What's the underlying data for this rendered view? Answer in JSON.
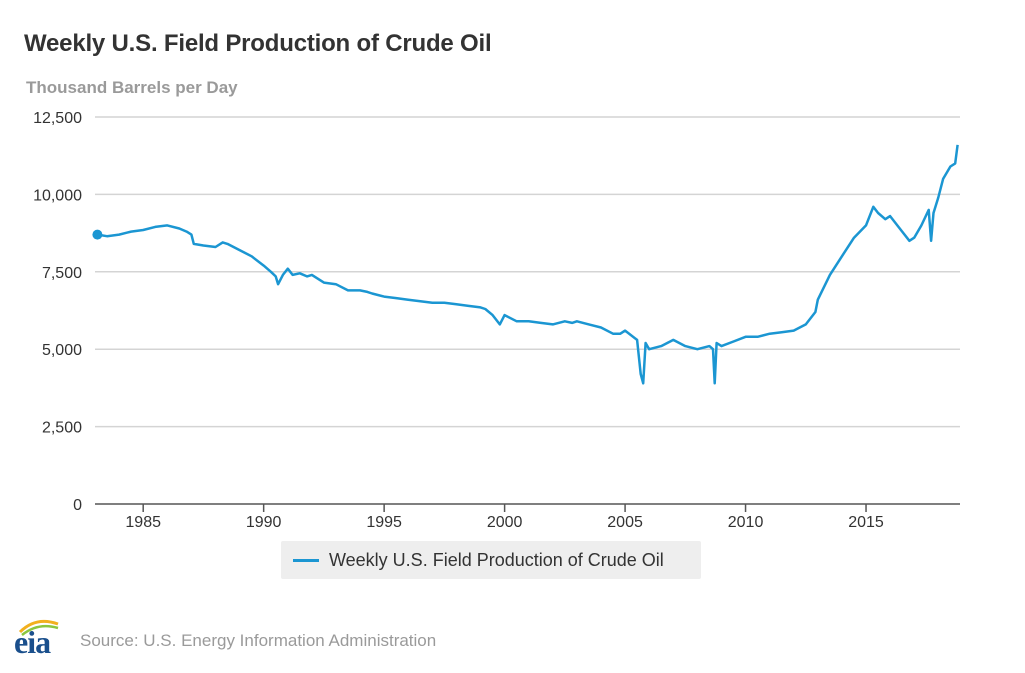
{
  "chart_data": {
    "type": "line",
    "title": "Weekly U.S. Field Production of Crude Oil",
    "ylabel": "Thousand Barrels per Day",
    "xlabel": "",
    "xlim": [
      1983.0,
      2018.9
    ],
    "ylim": [
      0,
      12500
    ],
    "x_ticks": [
      1985,
      1990,
      1995,
      2000,
      2005,
      2010,
      2015
    ],
    "y_ticks": [
      0,
      2500,
      5000,
      7500,
      10000,
      12500
    ],
    "y_tick_labels": [
      "0",
      "2,500",
      "5,000",
      "7,500",
      "10,000",
      "12,500"
    ],
    "grid": true,
    "legend_position": "bottom-center",
    "series": [
      {
        "name": "Weekly U.S. Field Production of Crude Oil",
        "color": "#1b96d2",
        "start_marker": true,
        "x": [
          1983.1,
          1983.5,
          1984.0,
          1984.5,
          1985.0,
          1985.5,
          1986.0,
          1986.5,
          1986.8,
          1987.0,
          1987.1,
          1987.5,
          1988.0,
          1988.3,
          1988.5,
          1989.0,
          1989.5,
          1990.0,
          1990.3,
          1990.5,
          1990.6,
          1990.8,
          1991.0,
          1991.2,
          1991.5,
          1991.8,
          1992.0,
          1992.5,
          1993.0,
          1993.5,
          1994.0,
          1994.3,
          1994.5,
          1995.0,
          1995.5,
          1996.0,
          1996.5,
          1997.0,
          1997.5,
          1998.0,
          1998.5,
          1999.0,
          1999.2,
          1999.5,
          1999.8,
          2000.0,
          2000.5,
          2001.0,
          2001.5,
          2002.0,
          2002.5,
          2002.8,
          2003.0,
          2003.5,
          2004.0,
          2004.5,
          2004.8,
          2005.0,
          2005.5,
          2005.65,
          2005.75,
          2005.85,
          2006.0,
          2006.5,
          2007.0,
          2007.5,
          2008.0,
          2008.5,
          2008.65,
          2008.72,
          2008.8,
          2009.0,
          2009.5,
          2010.0,
          2010.5,
          2011.0,
          2011.5,
          2012.0,
          2012.5,
          2012.9,
          2013.0,
          2013.5,
          2014.0,
          2014.5,
          2015.0,
          2015.3,
          2015.5,
          2015.8,
          2016.0,
          2016.5,
          2016.8,
          2017.0,
          2017.3,
          2017.6,
          2017.7,
          2017.8,
          2018.0,
          2018.2,
          2018.5,
          2018.7,
          2018.8
        ],
        "values": [
          8700,
          8650,
          8700,
          8800,
          8850,
          8950,
          9000,
          8900,
          8800,
          8700,
          8400,
          8350,
          8300,
          8450,
          8400,
          8200,
          8000,
          7700,
          7500,
          7350,
          7100,
          7400,
          7600,
          7400,
          7450,
          7350,
          7400,
          7150,
          7100,
          6900,
          6900,
          6850,
          6800,
          6700,
          6650,
          6600,
          6550,
          6500,
          6500,
          6450,
          6400,
          6350,
          6300,
          6100,
          5800,
          6100,
          5900,
          5900,
          5850,
          5800,
          5900,
          5850,
          5900,
          5800,
          5700,
          5500,
          5500,
          5600,
          5300,
          4200,
          3900,
          5200,
          5000,
          5100,
          5300,
          5100,
          5000,
          5100,
          5000,
          3900,
          5200,
          5100,
          5250,
          5400,
          5400,
          5500,
          5550,
          5600,
          5800,
          6200,
          6600,
          7400,
          8000,
          8600,
          9000,
          9600,
          9400,
          9200,
          9300,
          8800,
          8500,
          8600,
          9000,
          9500,
          8500,
          9400,
          9900,
          10500,
          10900,
          11000,
          11600
        ]
      }
    ]
  },
  "legend": {
    "label": "Weekly U.S. Field Production of Crude Oil"
  },
  "footer": {
    "source": "Source: U.S. Energy Information Administration",
    "logo_text": "eia"
  }
}
